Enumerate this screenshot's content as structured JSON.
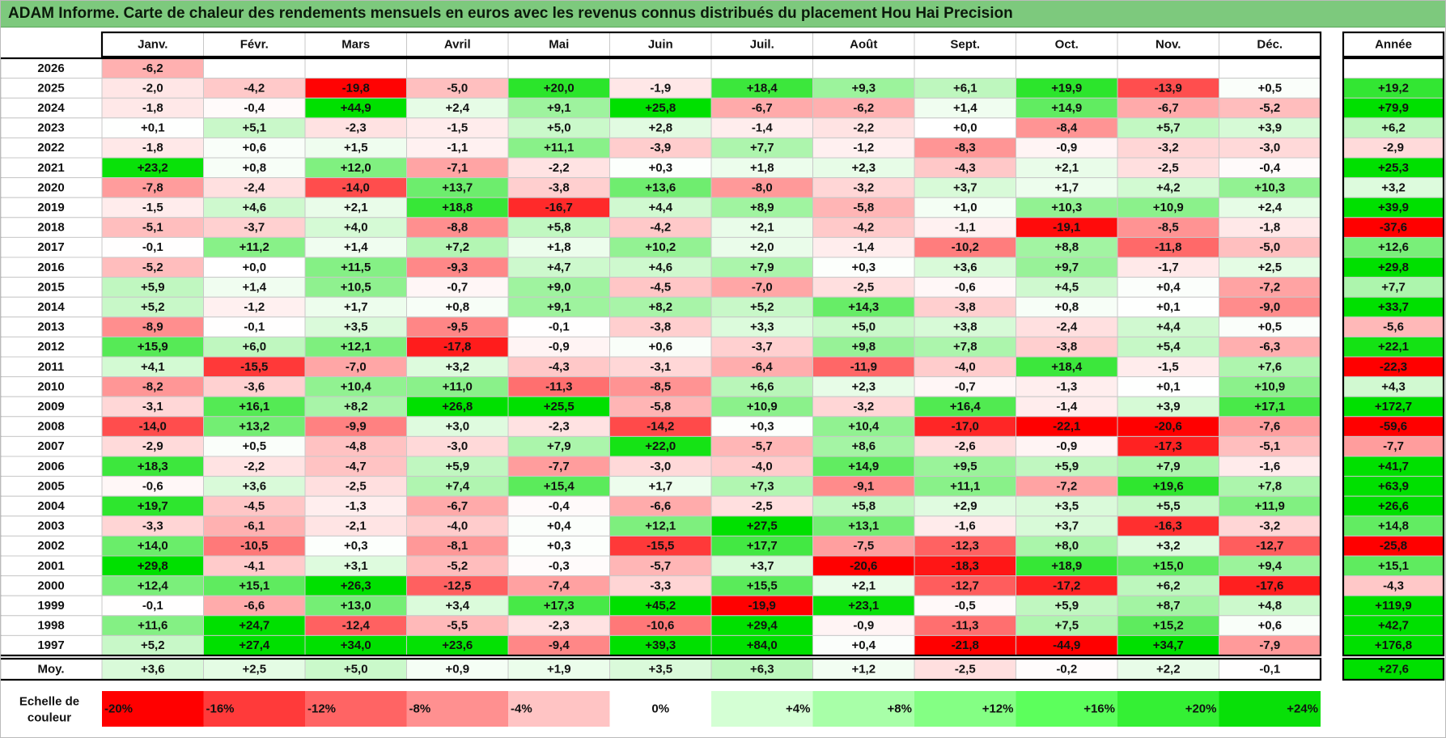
{
  "title": "ADAM Informe. Carte de chaleur des rendements mensuels en euros avec les revenus connus distribués du placement Hou Hai Precision",
  "chart_data": {
    "type": "heatmap",
    "months": [
      "Janv.",
      "Févr.",
      "Mars",
      "Avril",
      "Mai",
      "Juin",
      "Juil.",
      "Août",
      "Sept.",
      "Oct.",
      "Nov.",
      "Déc."
    ],
    "year_header": "Année",
    "rows": [
      {
        "year": "2026",
        "values": [
          "-6,2",
          "",
          "",
          "",
          "",
          "",
          "",
          "",
          "",
          "",
          "",
          ""
        ],
        "annual": ""
      },
      {
        "year": "2025",
        "values": [
          "-2,0",
          "-4,2",
          "-19,8",
          "-5,0",
          "+20,0",
          "-1,9",
          "+18,4",
          "+9,3",
          "+6,1",
          "+19,9",
          "-13,9",
          "+0,5"
        ],
        "annual": "+19,2"
      },
      {
        "year": "2024",
        "values": [
          "-1,8",
          "-0,4",
          "+44,9",
          "+2,4",
          "+9,1",
          "+25,8",
          "-6,7",
          "-6,2",
          "+1,4",
          "+14,9",
          "-6,7",
          "-5,2"
        ],
        "annual": "+79,9"
      },
      {
        "year": "2023",
        "values": [
          "+0,1",
          "+5,1",
          "-2,3",
          "-1,5",
          "+5,0",
          "+2,8",
          "-1,4",
          "-2,2",
          "+0,0",
          "-8,4",
          "+5,7",
          "+3,9"
        ],
        "annual": "+6,2"
      },
      {
        "year": "2022",
        "values": [
          "-1,8",
          "+0,6",
          "+1,5",
          "-1,1",
          "+11,1",
          "-3,9",
          "+7,7",
          "-1,2",
          "-8,3",
          "-0,9",
          "-3,2",
          "-3,0"
        ],
        "annual": "-2,9"
      },
      {
        "year": "2021",
        "values": [
          "+23,2",
          "+0,8",
          "+12,0",
          "-7,1",
          "-2,2",
          "+0,3",
          "+1,8",
          "+2,3",
          "-4,3",
          "+2,1",
          "-2,5",
          "-0,4"
        ],
        "annual": "+25,3"
      },
      {
        "year": "2020",
        "values": [
          "-7,8",
          "-2,4",
          "-14,0",
          "+13,7",
          "-3,8",
          "+13,6",
          "-8,0",
          "-3,2",
          "+3,7",
          "+1,7",
          "+4,2",
          "+10,3"
        ],
        "annual": "+3,2"
      },
      {
        "year": "2019",
        "values": [
          "-1,5",
          "+4,6",
          "+2,1",
          "+18,8",
          "-16,7",
          "+4,4",
          "+8,9",
          "-5,8",
          "+1,0",
          "+10,3",
          "+10,9",
          "+2,4"
        ],
        "annual": "+39,9"
      },
      {
        "year": "2018",
        "values": [
          "-5,1",
          "-3,7",
          "+4,0",
          "-8,8",
          "+5,8",
          "-4,2",
          "+2,1",
          "-4,2",
          "-1,1",
          "-19,1",
          "-8,5",
          "-1,8"
        ],
        "annual": "-37,6"
      },
      {
        "year": "2017",
        "values": [
          "-0,1",
          "+11,2",
          "+1,4",
          "+7,2",
          "+1,8",
          "+10,2",
          "+2,0",
          "-1,4",
          "-10,2",
          "+8,8",
          "-11,8",
          "-5,0"
        ],
        "annual": "+12,6"
      },
      {
        "year": "2016",
        "values": [
          "-5,2",
          "+0,0",
          "+11,5",
          "-9,3",
          "+4,7",
          "+4,6",
          "+7,9",
          "+0,3",
          "+3,6",
          "+9,7",
          "-1,7",
          "+2,5"
        ],
        "annual": "+29,8"
      },
      {
        "year": "2015",
        "values": [
          "+5,9",
          "+1,4",
          "+10,5",
          "-0,7",
          "+9,0",
          "-4,5",
          "-7,0",
          "-2,5",
          "-0,6",
          "+4,5",
          "+0,4",
          "-7,2"
        ],
        "annual": "+7,7"
      },
      {
        "year": "2014",
        "values": [
          "+5,2",
          "-1,2",
          "+1,7",
          "+0,8",
          "+9,1",
          "+8,2",
          "+5,2",
          "+14,3",
          "-3,8",
          "+0,8",
          "+0,1",
          "-9,0"
        ],
        "annual": "+33,7"
      },
      {
        "year": "2013",
        "values": [
          "-8,9",
          "-0,1",
          "+3,5",
          "-9,5",
          "-0,1",
          "-3,8",
          "+3,3",
          "+5,0",
          "+3,8",
          "-2,4",
          "+4,4",
          "+0,5"
        ],
        "annual": "-5,6"
      },
      {
        "year": "2012",
        "values": [
          "+15,9",
          "+6,0",
          "+12,1",
          "-17,8",
          "-0,9",
          "+0,6",
          "-3,7",
          "+9,8",
          "+7,8",
          "-3,8",
          "+5,4",
          "-6,3"
        ],
        "annual": "+22,1"
      },
      {
        "year": "2011",
        "values": [
          "+4,1",
          "-15,5",
          "-7,0",
          "+3,2",
          "-4,3",
          "-3,1",
          "-6,4",
          "-11,9",
          "-4,0",
          "+18,4",
          "-1,5",
          "+7,6"
        ],
        "annual": "-22,3"
      },
      {
        "year": "2010",
        "values": [
          "-8,2",
          "-3,6",
          "+10,4",
          "+11,0",
          "-11,3",
          "-8,5",
          "+6,6",
          "+2,3",
          "-0,7",
          "-1,3",
          "+0,1",
          "+10,9"
        ],
        "annual": "+4,3"
      },
      {
        "year": "2009",
        "values": [
          "-3,1",
          "+16,1",
          "+8,2",
          "+26,8",
          "+25,5",
          "-5,8",
          "+10,9",
          "-3,2",
          "+16,4",
          "-1,4",
          "+3,9",
          "+17,1"
        ],
        "annual": "+172,7"
      },
      {
        "year": "2008",
        "values": [
          "-14,0",
          "+13,2",
          "-9,9",
          "+3,0",
          "-2,3",
          "-14,2",
          "+0,3",
          "+10,4",
          "-17,0",
          "-22,1",
          "-20,6",
          "-7,6"
        ],
        "annual": "-59,6"
      },
      {
        "year": "2007",
        "values": [
          "-2,9",
          "+0,5",
          "-4,8",
          "-3,0",
          "+7,9",
          "+22,0",
          "-5,7",
          "+8,6",
          "-2,6",
          "-0,9",
          "-17,3",
          "-5,1"
        ],
        "annual": "-7,7"
      },
      {
        "year": "2006",
        "values": [
          "+18,3",
          "-2,2",
          "-4,7",
          "+5,9",
          "-7,7",
          "-3,0",
          "-4,0",
          "+14,9",
          "+9,5",
          "+5,9",
          "+7,9",
          "-1,6"
        ],
        "annual": "+41,7"
      },
      {
        "year": "2005",
        "values": [
          "-0,6",
          "+3,6",
          "-2,5",
          "+7,4",
          "+15,4",
          "+1,7",
          "+7,3",
          "-9,1",
          "+11,1",
          "-7,2",
          "+19,6",
          "+7,8"
        ],
        "annual": "+63,9"
      },
      {
        "year": "2004",
        "values": [
          "+19,7",
          "-4,5",
          "-1,3",
          "-6,7",
          "-0,4",
          "-6,6",
          "-2,5",
          "+5,8",
          "+2,9",
          "+3,5",
          "+5,5",
          "+11,9"
        ],
        "annual": "+26,6"
      },
      {
        "year": "2003",
        "values": [
          "-3,3",
          "-6,1",
          "-2,1",
          "-4,0",
          "+0,4",
          "+12,1",
          "+27,5",
          "+13,1",
          "-1,6",
          "+3,7",
          "-16,3",
          "-3,2"
        ],
        "annual": "+14,8"
      },
      {
        "year": "2002",
        "values": [
          "+14,0",
          "-10,5",
          "+0,3",
          "-8,1",
          "+0,3",
          "-15,5",
          "+17,7",
          "-7,5",
          "-12,3",
          "+8,0",
          "+3,2",
          "-12,7"
        ],
        "annual": "-25,8"
      },
      {
        "year": "2001",
        "values": [
          "+29,8",
          "-4,1",
          "+3,1",
          "-5,2",
          "-0,3",
          "-5,7",
          "+3,7",
          "-20,6",
          "-18,3",
          "+18,9",
          "+15,0",
          "+9,4"
        ],
        "annual": "+15,1"
      },
      {
        "year": "2000",
        "values": [
          "+12,4",
          "+15,1",
          "+26,3",
          "-12,5",
          "-7,4",
          "-3,3",
          "+15,5",
          "+2,1",
          "-12,7",
          "-17,2",
          "+6,2",
          "-17,6"
        ],
        "annual": "-4,3"
      },
      {
        "year": "1999",
        "values": [
          "-0,1",
          "-6,6",
          "+13,0",
          "+3,4",
          "+17,3",
          "+45,2",
          "-19,9",
          "+23,1",
          "-0,5",
          "+5,9",
          "+8,7",
          "+4,8"
        ],
        "annual": "+119,9"
      },
      {
        "year": "1998",
        "values": [
          "+11,6",
          "+24,7",
          "-12,4",
          "-5,5",
          "-2,3",
          "-10,6",
          "+29,4",
          "-0,9",
          "-11,3",
          "+7,5",
          "+15,2",
          "+0,6"
        ],
        "annual": "+42,7"
      },
      {
        "year": "1997",
        "values": [
          "+5,2",
          "+27,4",
          "+34,0",
          "+23,6",
          "-9,4",
          "+39,3",
          "+84,0",
          "+0,4",
          "-21,8",
          "-44,9",
          "+34,7",
          "-7,9"
        ],
        "annual": "+176,8"
      }
    ],
    "average": {
      "label": "Moy.",
      "values": [
        "+3,6",
        "+2,5",
        "+5,0",
        "+0,9",
        "+1,9",
        "+3,5",
        "+6,3",
        "+1,2",
        "-2,5",
        "-0,2",
        "+2,2",
        "-0,1"
      ],
      "annual": "+27,6"
    },
    "scale": {
      "label_line1": "Echelle de",
      "label_line2": "couleur",
      "steps": [
        {
          "label": "-20%",
          "value": -20,
          "color": "#ff0000"
        },
        {
          "label": "-16%",
          "value": -16,
          "color": "#ff3a3a"
        },
        {
          "label": "-12%",
          "value": -12,
          "color": "#ff6464"
        },
        {
          "label": "-8%",
          "value": -8,
          "color": "#ff9090"
        },
        {
          "label": "-4%",
          "value": -4,
          "color": "#ffc4c4"
        },
        {
          "label": "0%",
          "value": 0,
          "color": "#ffffff"
        },
        {
          "label": "+4%",
          "value": 4,
          "color": "#d4ffd4"
        },
        {
          "label": "+8%",
          "value": 8,
          "color": "#a8ffa8"
        },
        {
          "label": "+12%",
          "value": 12,
          "color": "#84ff84"
        },
        {
          "label": "+16%",
          "value": 16,
          "color": "#5cff5c"
        },
        {
          "label": "+20%",
          "value": 20,
          "color": "#34f034"
        },
        {
          "label": "+24%",
          "value": 24,
          "color": "#08e008"
        }
      ]
    },
    "colors": {
      "title_bar": "#7dc97d",
      "negative_max": "#ff0000",
      "positive_max": "#00dd00",
      "neutral": "#ffffff",
      "grid": "#c8c8c8",
      "frame": "#000000"
    }
  }
}
